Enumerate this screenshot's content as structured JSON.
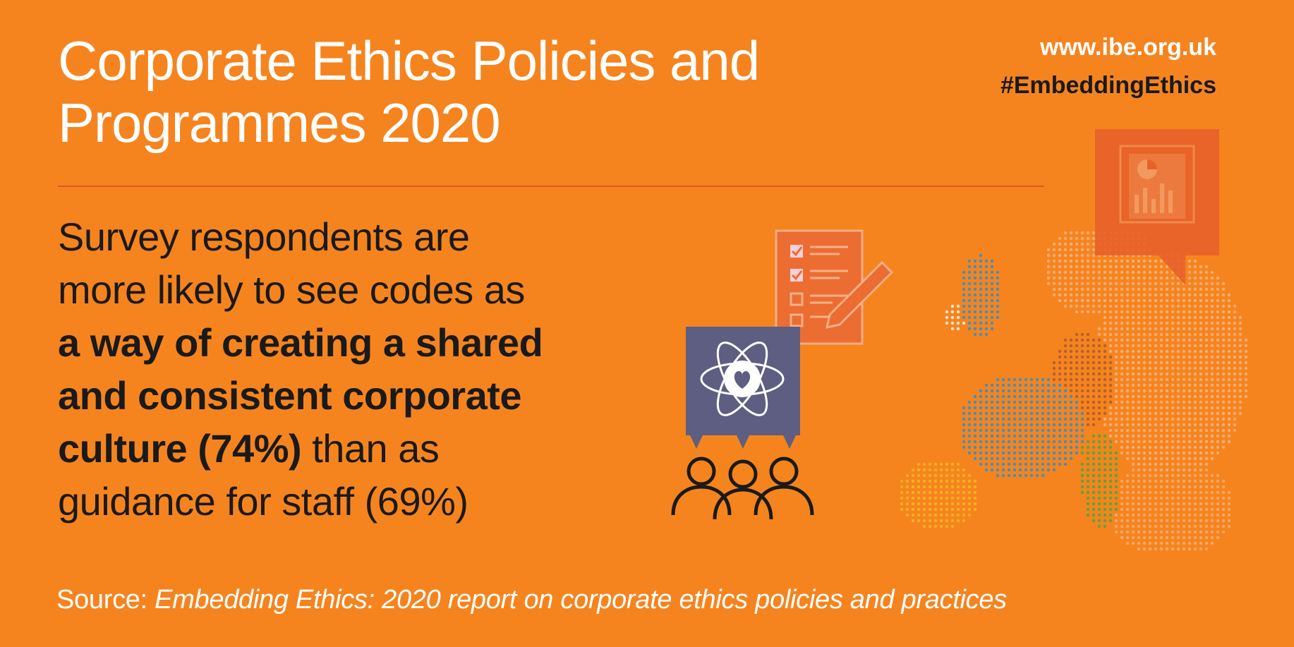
{
  "header": {
    "title": "Corporate Ethics Policies and Programmes 2020",
    "website": "www.ibe.org.uk",
    "hashtag": "#EmbeddingEthics"
  },
  "statement": {
    "line1": "Survey respondents are",
    "line2": "more likely to see codes as",
    "bold1": "a way of creating a shared",
    "bold2": "and consistent corporate",
    "bold3": "culture (74%)",
    "rest3": " than as",
    "line6": "guidance for staff (69%)"
  },
  "footer": {
    "prefix": "Source: ",
    "report": "Embedding Ethics: 2020 report on corporate ethics policies and practices"
  },
  "illustration": {
    "icons": [
      "checklist-icon",
      "pencil-icon",
      "atom-heart-icon",
      "people-group-icon",
      "report-chart-icon",
      "europe-dot-map"
    ],
    "colors": {
      "background": "#f5841f",
      "rule": "#e2552a",
      "panel": "#5e5e82",
      "speech": "#e8612a",
      "map_blue": "#3a8fc4",
      "map_brown": "#b35e2c",
      "map_green": "#4fa83c",
      "map_yellow": "#f5b21f"
    }
  }
}
